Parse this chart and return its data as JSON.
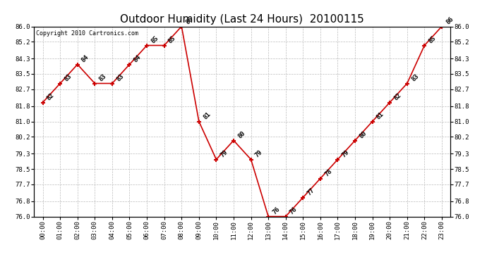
{
  "title": "Outdoor Humidity (Last 24 Hours)  20100115",
  "copyright_text": "Copyright 2010 Cartronics.com",
  "hours": [
    0,
    1,
    2,
    3,
    4,
    5,
    6,
    7,
    8,
    9,
    10,
    11,
    12,
    13,
    14,
    15,
    16,
    17,
    18,
    19,
    20,
    21,
    22,
    23
  ],
  "values": [
    82,
    83,
    84,
    83,
    83,
    84,
    85,
    85,
    86,
    81,
    79,
    80,
    79,
    76,
    76,
    77,
    78,
    79,
    80,
    81,
    82,
    83,
    85,
    86
  ],
  "ylim_min": 76.0,
  "ylim_max": 86.0,
  "yticks": [
    76.0,
    76.8,
    77.7,
    78.5,
    79.3,
    80.2,
    81.0,
    81.8,
    82.7,
    83.5,
    84.3,
    85.2,
    86.0
  ],
  "ytick_labels": [
    "76.0",
    "76.8",
    "77.7",
    "78.5",
    "79.3",
    "80.2",
    "81.0",
    "81.8",
    "82.7",
    "83.5",
    "84.3",
    "85.2",
    "86.0"
  ],
  "line_color": "#cc0000",
  "marker_color": "#cc0000",
  "bg_color": "#ffffff",
  "grid_color": "#bbbbbb",
  "title_fontsize": 11,
  "label_fontsize": 6.5,
  "annotation_fontsize": 6.5,
  "copyright_fontsize": 6
}
